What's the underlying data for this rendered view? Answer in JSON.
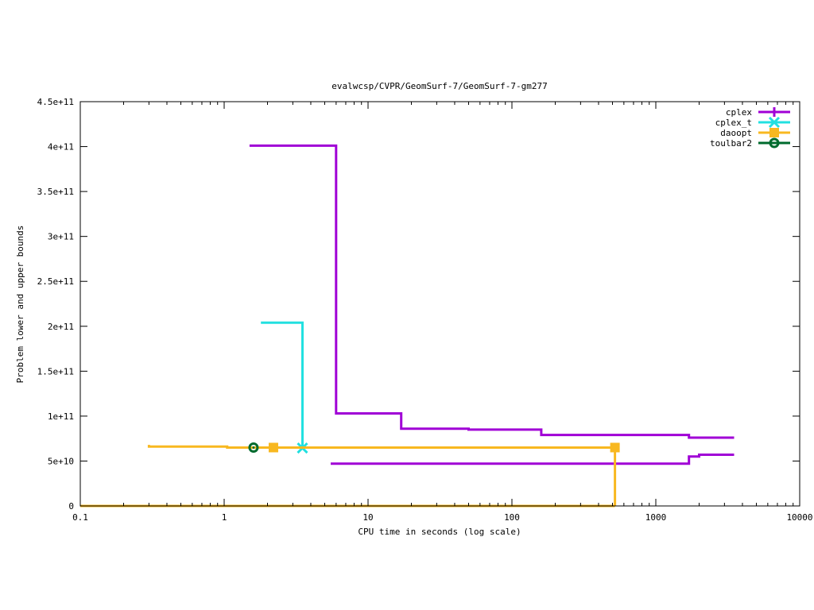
{
  "chart_data": {
    "type": "line",
    "title": "evalwcsp/CVPR/GeomSurf-7/GeomSurf-7-gm277",
    "xlabel": "CPU time in seconds (log scale)",
    "ylabel": "Problem lower and upper bounds",
    "x_scale": "log",
    "xlim": [
      0.1,
      10000
    ],
    "ylim": [
      0,
      450000000000
    ],
    "x_ticks": [
      0.1,
      1,
      10,
      100,
      1000,
      10000
    ],
    "x_tick_labels": [
      "0.1",
      "1",
      "10",
      "100",
      "1000",
      "10000"
    ],
    "y_ticks": [
      0,
      50000000000,
      100000000000,
      150000000000,
      200000000000,
      250000000000,
      300000000000,
      350000000000,
      400000000000,
      450000000000
    ],
    "y_tick_labels": [
      "0",
      "5e+10",
      "1e+11",
      "1.5e+11",
      "2e+11",
      "2.5e+11",
      "3e+11",
      "3.5e+11",
      "4e+11",
      "4.5e+11"
    ],
    "grid": false,
    "legend_position": "top-right",
    "series": [
      {
        "name": "cplex",
        "color": "#a000d6",
        "marker": "plus",
        "lines": [
          [
            [
              1.5,
              401000000000
            ],
            [
              6.0,
              401000000000
            ],
            [
              6.0,
              103000000000
            ],
            [
              17.0,
              103000000000
            ],
            [
              17.0,
              86000000000
            ],
            [
              50.0,
              86000000000
            ],
            [
              50.0,
              85000000000
            ],
            [
              160.0,
              85000000000
            ],
            [
              160.0,
              79000000000
            ],
            [
              1700.0,
              79000000000
            ],
            [
              1700.0,
              76000000000
            ],
            [
              3500.0,
              76000000000
            ]
          ],
          [
            [
              5.5,
              47000000000
            ],
            [
              1700.0,
              47000000000
            ],
            [
              1700.0,
              55000000000
            ],
            [
              2000.0,
              55000000000
            ],
            [
              2000.0,
              57000000000
            ],
            [
              3500.0,
              57000000000
            ]
          ]
        ],
        "points": []
      },
      {
        "name": "cplex_t",
        "color": "#22e0e0",
        "marker": "cross",
        "lines": [
          [
            [
              1.8,
              204000000000
            ],
            [
              3.5,
              204000000000
            ],
            [
              3.5,
              64500000000
            ]
          ]
        ],
        "points": [
          [
            3.5,
            64500000000
          ]
        ]
      },
      {
        "name": "daoopt",
        "color": "#f8b820",
        "marker": "square",
        "lines": [
          [
            [
              0.3,
              68000000000
            ],
            [
              0.3,
              66000000000
            ],
            [
              1.05,
              66000000000
            ],
            [
              1.05,
              65000000000
            ],
            [
              520.0,
              65000000000
            ],
            [
              520.0,
              0
            ]
          ],
          [
            [
              0.1,
              0
            ],
            [
              520.0,
              0
            ]
          ]
        ],
        "points": [
          [
            2.2,
            65000000000
          ],
          [
            520.0,
            65000000000
          ]
        ]
      },
      {
        "name": "toulbar2",
        "color": "#006b2e",
        "marker": "circle",
        "lines": [],
        "points": [
          [
            1.6,
            65000000000
          ]
        ]
      }
    ]
  }
}
